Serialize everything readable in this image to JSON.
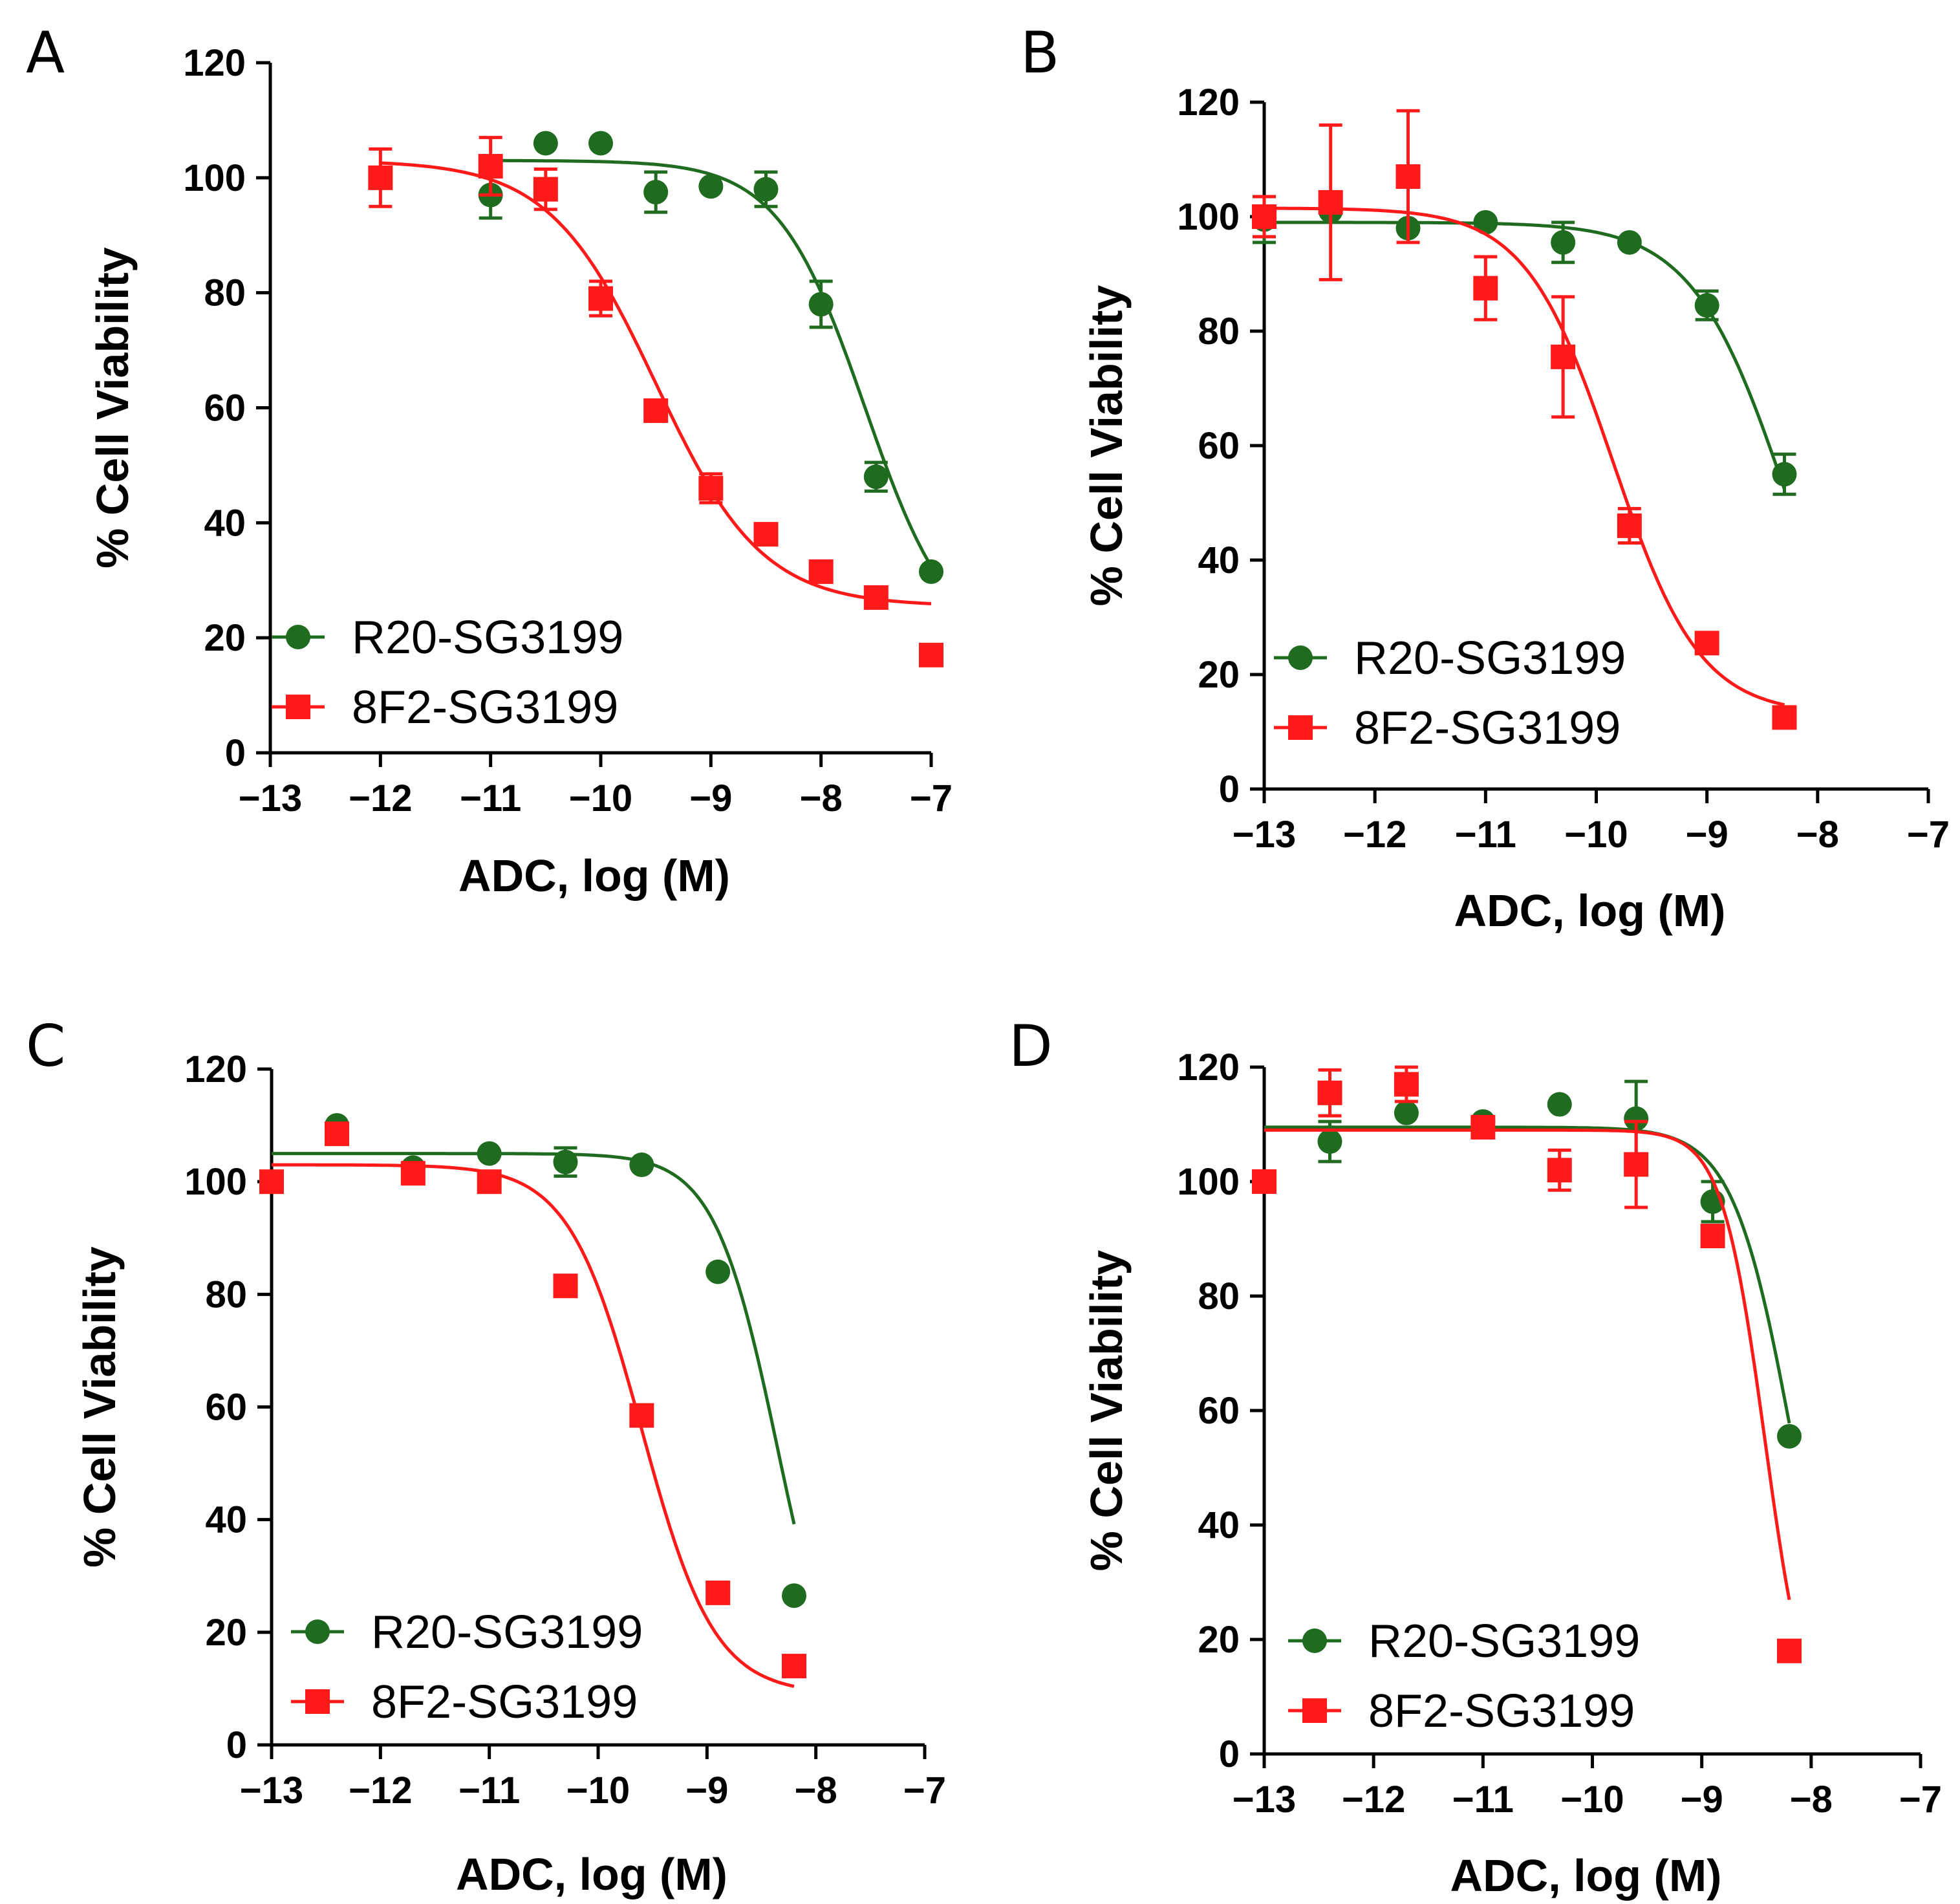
{
  "colors": {
    "R20": "#1f6b1f",
    "8F2": "#ff1a1a",
    "axis": "#000000"
  },
  "chart_data": [
    {
      "panel": "A",
      "type": "scatter",
      "xlabel": "ADC, log (M)",
      "ylabel": "% Cell Viability",
      "xlim": [
        -13,
        -7
      ],
      "ylim": [
        0,
        120
      ],
      "xticks": [
        -13,
        -12,
        -11,
        -10,
        -9,
        -8,
        -7
      ],
      "xtick_labels": [
        "−13",
        "−12",
        "−11",
        "−10",
        "−9",
        "−8",
        "−7"
      ],
      "yticks": [
        0,
        20,
        40,
        60,
        80,
        100,
        120
      ],
      "ytick_labels": [
        "0",
        "20",
        "40",
        "60",
        "80",
        "100",
        "120"
      ],
      "legend": "bottom-left",
      "series": [
        {
          "name": "R20-SG3199",
          "marker": "circle",
          "color": "#1f6b1f",
          "x": [
            -11,
            -10.5,
            -10,
            -9.5,
            -9,
            -8.5,
            -8,
            -7.5,
            -7
          ],
          "y": [
            97,
            106,
            106,
            97.5,
            98.5,
            98,
            78,
            48,
            31.5
          ],
          "err": [
            4,
            0,
            0,
            3.5,
            0,
            3,
            4,
            2.5,
            0
          ],
          "fit": {
            "top": 103,
            "bottom": 17,
            "logEC50": -7.6,
            "hill": 1.1,
            "xmin": -11,
            "xmax": -7
          }
        },
        {
          "name": "8F2-SG3199",
          "marker": "square",
          "color": "#ff1a1a",
          "x": [
            -12,
            -11,
            -10.5,
            -10,
            -9.5,
            -9,
            -8.5,
            -8,
            -7.5,
            -7
          ],
          "y": [
            100,
            102,
            98,
            79,
            59.5,
            46,
            38,
            31.5,
            27,
            17
          ],
          "err": [
            5,
            5,
            3.5,
            3,
            0,
            2.5,
            0,
            0,
            0,
            0
          ],
          "fit": {
            "top": 103,
            "bottom": 25.5,
            "logEC50": -9.5,
            "hill": 0.9,
            "xmin": -12,
            "xmax": -7
          }
        }
      ]
    },
    {
      "panel": "B",
      "type": "scatter",
      "xlabel": "ADC, log (M)",
      "ylabel": "% Cell Viability",
      "xlim": [
        -13,
        -7
      ],
      "ylim": [
        0,
        120
      ],
      "xticks": [
        -13,
        -12,
        -11,
        -10,
        -9,
        -8,
        -7
      ],
      "xtick_labels": [
        "−13",
        "−12",
        "−11",
        "−10",
        "−9",
        "−8",
        "−7"
      ],
      "yticks": [
        0,
        20,
        40,
        60,
        80,
        100,
        120
      ],
      "ytick_labels": [
        "0",
        "20",
        "40",
        "60",
        "80",
        "100",
        "120"
      ],
      "legend": "bottom-left",
      "series": [
        {
          "name": "R20-SG3199",
          "marker": "circle",
          "color": "#1f6b1f",
          "x": [
            -13,
            -12.4,
            -11.7,
            -11,
            -10.3,
            -9.7,
            -9,
            -8.3
          ],
          "y": [
            99.5,
            101,
            98,
            99,
            95.5,
            95.5,
            84.5,
            55
          ],
          "err": [
            4,
            0,
            0,
            0,
            3.5,
            0,
            2.5,
            3.5
          ],
          "fit": {
            "top": 99,
            "bottom": 0,
            "logEC50": -8.25,
            "hill": 1.0,
            "xmin": -13,
            "xmax": -8.3
          }
        },
        {
          "name": "8F2-SG3199",
          "marker": "square",
          "color": "#ff1a1a",
          "x": [
            -13,
            -12.4,
            -11.7,
            -11,
            -10.3,
            -9.7,
            -9,
            -8.3
          ],
          "y": [
            100,
            102.5,
            107,
            87.5,
            75.5,
            46,
            25.5,
            12.5
          ],
          "err": [
            3.5,
            13.5,
            11.5,
            5.5,
            10.5,
            3,
            0,
            0
          ],
          "fit": {
            "top": 101.5,
            "bottom": 13,
            "logEC50": -9.85,
            "hill": 1.1,
            "xmin": -13,
            "xmax": -8.3
          }
        }
      ]
    },
    {
      "panel": "C",
      "type": "scatter",
      "xlabel": "ADC, log (M)",
      "ylabel": "% Cell Viability",
      "xlim": [
        -13,
        -7
      ],
      "ylim": [
        0,
        120
      ],
      "xticks": [
        -13,
        -12,
        -11,
        -10,
        -9,
        -8,
        -7
      ],
      "xtick_labels": [
        "−13",
        "−12",
        "−11",
        "−10",
        "−9",
        "−8",
        "−7"
      ],
      "yticks": [
        0,
        20,
        40,
        60,
        80,
        100,
        120
      ],
      "ytick_labels": [
        "0",
        "20",
        "40",
        "60",
        "80",
        "100",
        "120"
      ],
      "legend": "bottom-left",
      "series": [
        {
          "name": "R20-SG3199",
          "marker": "circle",
          "color": "#1f6b1f",
          "x": [
            -13,
            -12.4,
            -11.7,
            -11,
            -10.3,
            -9.6,
            -8.9,
            -8.2
          ],
          "y": [
            100,
            110,
            102.5,
            105,
            103.5,
            103,
            84,
            26.5
          ],
          "err": [
            0,
            0,
            0,
            0,
            2.5,
            0,
            0,
            0
          ],
          "fit": {
            "top": 105,
            "bottom": 0,
            "logEC50": -8.35,
            "hill": 1.5,
            "xmin": -13,
            "xmax": -8.2
          }
        },
        {
          "name": "8F2-SG3199",
          "marker": "square",
          "color": "#ff1a1a",
          "x": [
            -13,
            -12.4,
            -11.7,
            -11,
            -10.3,
            -9.6,
            -8.9,
            -8.2
          ],
          "y": [
            100,
            108.5,
            101.5,
            100,
            81.5,
            58.5,
            27,
            14
          ],
          "err": [
            0,
            0,
            0,
            0,
            0,
            0,
            0,
            0
          ],
          "fit": {
            "top": 103,
            "bottom": 9,
            "logEC50": -9.6,
            "hill": 1.3,
            "xmin": -13,
            "xmax": -8.2
          }
        }
      ]
    },
    {
      "panel": "D",
      "type": "scatter",
      "xlabel": "ADC, log (M)",
      "ylabel": "% Cell Viability",
      "xlim": [
        -13,
        -7
      ],
      "ylim": [
        0,
        120
      ],
      "xticks": [
        -13,
        -12,
        -11,
        -10,
        -9,
        -8,
        -7
      ],
      "xtick_labels": [
        "−13",
        "−12",
        "−11",
        "−10",
        "−9",
        "−8",
        "−7"
      ],
      "yticks": [
        0,
        20,
        40,
        60,
        80,
        100,
        120
      ],
      "ytick_labels": [
        "0",
        "20",
        "40",
        "60",
        "80",
        "100",
        "120"
      ],
      "legend": "bottom-left",
      "series": [
        {
          "name": "R20-SG3199",
          "marker": "circle",
          "color": "#1f6b1f",
          "x": [
            -13,
            -12.4,
            -11.7,
            -11,
            -10.3,
            -9.6,
            -8.9,
            -8.2
          ],
          "y": [
            100,
            107,
            112,
            110.5,
            113.5,
            111,
            96.5,
            55.5
          ],
          "err": [
            0,
            3.5,
            0,
            0,
            0,
            6.5,
            3.5,
            0
          ],
          "fit": {
            "top": 109.5,
            "bottom": 0,
            "logEC50": -8.17,
            "hill": 1.6,
            "xmin": -13,
            "xmax": -8.2
          }
        },
        {
          "name": "8F2-SG3199",
          "marker": "square",
          "color": "#ff1a1a",
          "x": [
            -13,
            -12.4,
            -11.7,
            -11,
            -10.3,
            -9.6,
            -8.9,
            -8.2
          ],
          "y": [
            100,
            115.5,
            117,
            109.5,
            102,
            103,
            90.5,
            18
          ],
          "err": [
            0,
            4,
            3,
            0,
            3.5,
            7.5,
            0,
            0
          ],
          "fit": {
            "top": 109,
            "bottom": 0,
            "logEC50": -8.42,
            "hill": 2.2,
            "xmin": -13,
            "xmax": -8.2
          }
        }
      ]
    }
  ]
}
